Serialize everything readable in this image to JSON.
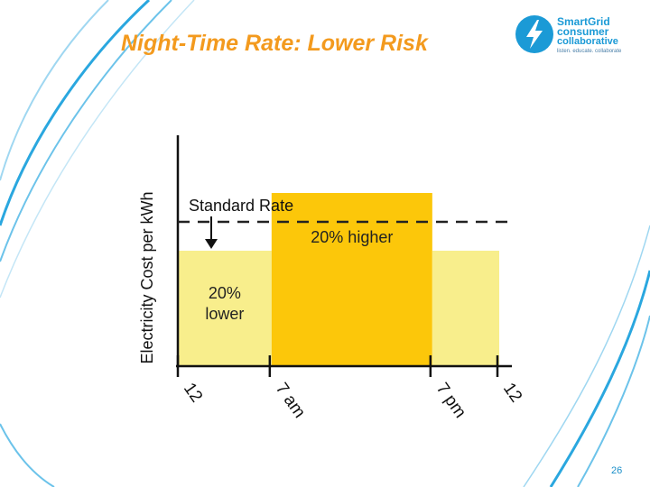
{
  "slide": {
    "title": "Night-Time Rate: Lower Risk",
    "page_number": "26",
    "accent_color": "#f39a1e",
    "brand_color": "#1b9ad6"
  },
  "logo": {
    "line1": "SmartGrid",
    "line2": "consumer",
    "line3": "collaborative",
    "tagline": "listen. educate. collaborate",
    "icon": "lightning-bolt-icon"
  },
  "chart_data": {
    "type": "bar",
    "ylabel": "Electricity Cost per kWh",
    "x_ticks": [
      "12",
      "7 am",
      "7 pm",
      "12"
    ],
    "x_tick_hours": [
      0,
      7,
      19,
      24
    ],
    "ylim": [
      0,
      1.6
    ],
    "segments": [
      {
        "start": 0,
        "end": 7,
        "value": 0.8,
        "color": "#f8ee8c"
      },
      {
        "start": 7,
        "end": 19,
        "value": 1.2,
        "color": "#fcc70a"
      },
      {
        "start": 19,
        "end": 24,
        "value": 0.8,
        "color": "#f8ee8c"
      }
    ],
    "standard_rate": 1.0,
    "annotations": {
      "standard_rate": "Standard Rate",
      "higher": "20% higher",
      "lower_line1": "20%",
      "lower_line2": "lower"
    },
    "grid": false
  }
}
